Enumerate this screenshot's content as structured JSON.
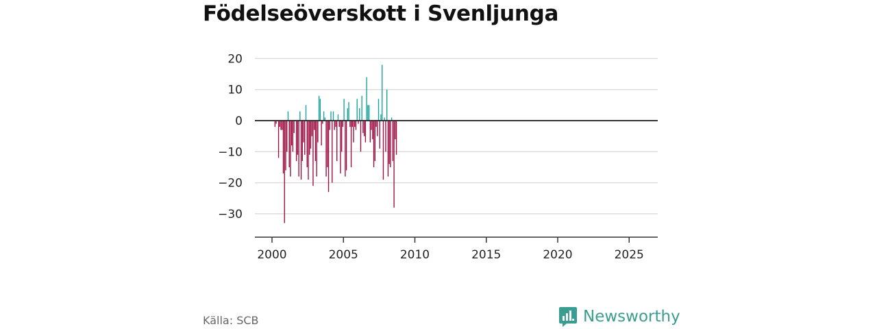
{
  "title": "Födelseöverskott i Svenljunga",
  "source": "Källa: SCB",
  "brand": {
    "name": "Newsworthy",
    "icon": "newsworthy-logo-icon"
  },
  "colors": {
    "positive": "#12a29a",
    "negative": "#9c0a3d",
    "grid": "#dddddd",
    "zero_line": "#333333"
  },
  "chart_data": {
    "type": "bar",
    "title": "Födelseöverskott i Svenljunga",
    "xlabel": "",
    "ylabel": "",
    "ylim": [
      -35,
      22
    ],
    "xlim": [
      1999.5,
      2026.9
    ],
    "yticks": [
      20,
      10,
      0,
      -10,
      -20,
      -30
    ],
    "ytick_labels": [
      "20",
      "10",
      "0",
      "−10",
      "−20",
      "−30"
    ],
    "xticks": [
      2000,
      2005,
      2010,
      2015,
      2020,
      2025
    ],
    "xtick_labels": [
      "2000",
      "2005",
      "2010",
      "2015",
      "2020",
      "2025"
    ],
    "start": {
      "year": 2000,
      "month": 1
    },
    "frequency": "monthly",
    "values": [
      0,
      0,
      -2,
      -1,
      0,
      -12,
      -2,
      -3,
      -3,
      -17,
      -33,
      -16,
      -10,
      3,
      -15,
      -18,
      -8,
      -10,
      -4,
      0,
      -13,
      -11,
      -18,
      3,
      -19,
      -13,
      -7,
      -11,
      5,
      -15,
      -19,
      -11,
      -9,
      -5,
      -21,
      -3,
      -13,
      -18,
      -7,
      8,
      7,
      -8,
      -1,
      3,
      1,
      -18,
      -15,
      -23,
      -3,
      3,
      -20,
      3,
      -3,
      -2,
      -13,
      2,
      -2,
      -17,
      -10,
      -2,
      7,
      -18,
      -16,
      4,
      6,
      -2,
      -15,
      -2,
      -7,
      -2,
      -3,
      7,
      -1,
      4,
      -10,
      8,
      -4,
      -5,
      -7,
      14,
      5,
      5,
      -7,
      -3,
      -6,
      -15,
      -13,
      -2,
      -5,
      7,
      -9,
      2,
      18,
      -19,
      1,
      -10,
      10,
      -18,
      -14,
      -15,
      1,
      -13,
      -28,
      -6,
      -11
    ]
  }
}
